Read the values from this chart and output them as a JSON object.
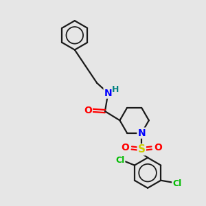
{
  "background_color": "#e6e6e6",
  "bond_color": "#1a1a1a",
  "atom_colors": {
    "N": "#0000ff",
    "O": "#ff0000",
    "S": "#cccc00",
    "Cl": "#00bb00",
    "H": "#008080",
    "C": "#1a1a1a"
  },
  "figsize": [
    3.0,
    3.0
  ],
  "dpi": 100,
  "lw": 1.6
}
